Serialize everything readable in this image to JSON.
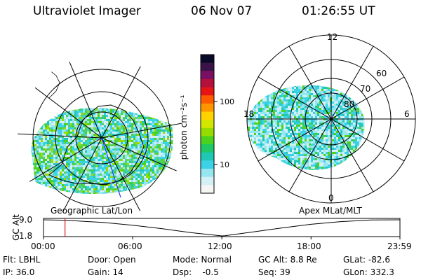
{
  "header": {
    "instrument": "Ultraviolet Imager",
    "date": "06 Nov 07",
    "time": "01:26:55 UT"
  },
  "left_panel": {
    "label": "Geographic Lat/Lon"
  },
  "right_panel": {
    "label": "Apex MLat/MLT",
    "mlt_labels": [
      "12",
      "18",
      "6",
      "0"
    ],
    "mlat_labels": [
      "60",
      "70",
      "80"
    ]
  },
  "colorbar": {
    "label": "photon cm⁻²s⁻¹",
    "ticks": [
      "100",
      "10"
    ],
    "colors": [
      "#0a0a28",
      "#3a1448",
      "#7a1064",
      "#b4103c",
      "#e61414",
      "#ff5a00",
      "#ff9600",
      "#ffd200",
      "#d2e600",
      "#96dc00",
      "#4bd21e",
      "#1ec864",
      "#1ec8b4",
      "#3cd2e6",
      "#96e6f0",
      "#d2f0f5",
      "#f5f5f5"
    ]
  },
  "chart_data": {
    "type": "line",
    "ylabel": "GC Alt",
    "yticks": [
      "9.0",
      "1.8"
    ],
    "ylim": [
      1.8,
      9.0
    ],
    "xticks": [
      "00:00",
      "06:00",
      "12:00",
      "18:00",
      "23:59"
    ],
    "x": [
      0,
      1.45,
      2,
      4,
      6,
      8,
      10,
      12,
      12.2,
      14,
      16,
      18,
      20,
      22,
      23.983
    ],
    "values": [
      9.0,
      8.8,
      8.6,
      7.8,
      6.6,
      5.0,
      3.2,
      1.8,
      1.9,
      3.5,
      5.3,
      7.0,
      8.2,
      8.9,
      9.0
    ],
    "current_time_hours": 1.448,
    "series": [
      {
        "name": "GC Alt",
        "values": [
          9.0,
          8.8,
          8.6,
          7.8,
          6.6,
          5.0,
          3.2,
          1.8,
          1.9,
          3.5,
          5.3,
          7.0,
          8.2,
          8.9,
          9.0
        ]
      }
    ]
  },
  "info": {
    "flt": "Flt: LBHL",
    "ip": "IP: 36.0",
    "door": "Door: Open",
    "gain": "Gain: 14",
    "mode": "Mode: Normal",
    "dsp": "Dsp:    -0.5",
    "gcalt": "GC Alt: 8.8 Re",
    "seq": "Seq: 39",
    "glat": "GLat: -82.6",
    "glon": "GLon: 332.3"
  }
}
